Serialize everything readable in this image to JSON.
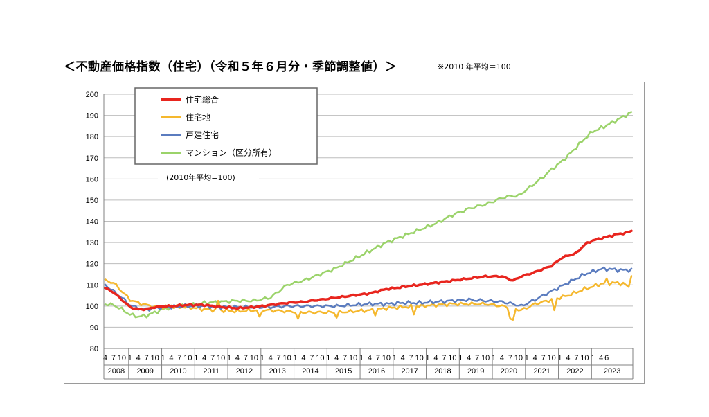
{
  "title": "＜不動産価格指数（住宅）（令和５年６月分・季節調整値）＞",
  "note": "※2010 年平均＝100",
  "chart_data": {
    "type": "line",
    "annotation": "(2010年平均=100)",
    "ylim": [
      80,
      200
    ],
    "yticks": [
      80,
      90,
      100,
      110,
      120,
      130,
      140,
      150,
      160,
      170,
      180,
      190,
      200
    ],
    "grid": "horizontal",
    "legend_position": "top-left",
    "x_start": "2008-04",
    "month_tick_labels": [
      "4",
      "7",
      "10",
      "1",
      "4",
      "7",
      "10",
      "1",
      "4",
      "7",
      "10",
      "1",
      "4",
      "7",
      "10",
      "1",
      "4",
      "7",
      "10",
      "1",
      "4",
      "7",
      "10",
      "1",
      "4",
      "7",
      "10",
      "1",
      "4",
      "7",
      "10",
      "1",
      "4",
      "7",
      "10",
      "1",
      "4",
      "7",
      "10",
      "1",
      "4",
      "7",
      "10",
      "1",
      "4",
      "7",
      "10",
      "1",
      "4",
      "7",
      "10",
      "1",
      "4",
      "7",
      "10",
      "1",
      "4",
      "7",
      "10",
      "1",
      "4",
      "6"
    ],
    "year_labels": [
      "2008",
      "2009",
      "2010",
      "2011",
      "2012",
      "2013",
      "2014",
      "2015",
      "2016",
      "2017",
      "2018",
      "2019",
      "2020",
      "2021",
      "2022",
      "2023"
    ],
    "series": [
      {
        "name": "住宅総合",
        "color": "#e8251e",
        "width": 3.5,
        "anchors": [
          [
            0,
            108.5
          ],
          [
            3,
            106.5
          ],
          [
            6,
            103
          ],
          [
            9,
            99.5
          ],
          [
            12,
            98.5
          ],
          [
            15,
            98.5
          ],
          [
            18,
            99.5
          ],
          [
            21,
            99.8
          ],
          [
            24,
            100
          ],
          [
            30,
            100.5
          ],
          [
            36,
            100.5
          ],
          [
            42,
            99.5
          ],
          [
            48,
            99
          ],
          [
            54,
            99.5
          ],
          [
            60,
            100.5
          ],
          [
            66,
            101.5
          ],
          [
            72,
            102
          ],
          [
            78,
            103
          ],
          [
            84,
            104
          ],
          [
            90,
            105
          ],
          [
            96,
            106
          ],
          [
            102,
            108
          ],
          [
            108,
            109
          ],
          [
            114,
            110
          ],
          [
            120,
            111
          ],
          [
            126,
            112
          ],
          [
            132,
            113
          ],
          [
            138,
            114
          ],
          [
            144,
            114
          ],
          [
            148,
            112
          ],
          [
            151,
            114
          ],
          [
            156,
            116
          ],
          [
            162,
            119
          ],
          [
            166,
            123
          ],
          [
            171,
            125
          ],
          [
            174,
            129
          ],
          [
            177,
            131
          ],
          [
            180,
            132
          ],
          [
            183,
            133
          ],
          [
            186,
            134
          ],
          [
            189,
            134.5
          ],
          [
            191,
            135.5
          ]
        ]
      },
      {
        "name": "住宅地",
        "color": "#f5b82e",
        "width": 2.5,
        "anchors": [
          [
            0,
            112
          ],
          [
            3,
            111
          ],
          [
            6,
            107
          ],
          [
            9,
            103
          ],
          [
            12,
            101.5
          ],
          [
            15,
            100.5
          ],
          [
            18,
            99.5
          ],
          [
            21,
            99.5
          ],
          [
            24,
            99.5
          ],
          [
            30,
            99.5
          ],
          [
            36,
            98.5
          ],
          [
            42,
            98
          ],
          [
            48,
            97.5
          ],
          [
            54,
            98
          ],
          [
            60,
            98
          ],
          [
            66,
            97.5
          ],
          [
            72,
            97
          ],
          [
            78,
            97
          ],
          [
            84,
            97
          ],
          [
            90,
            97.5
          ],
          [
            96,
            98
          ],
          [
            102,
            99
          ],
          [
            108,
            99.5
          ],
          [
            114,
            100
          ],
          [
            120,
            100.5
          ],
          [
            126,
            101
          ],
          [
            132,
            101
          ],
          [
            138,
            101
          ],
          [
            144,
            100
          ],
          [
            148,
            99
          ],
          [
            151,
            98
          ],
          [
            156,
            101
          ],
          [
            162,
            103
          ],
          [
            168,
            105
          ],
          [
            174,
            108
          ],
          [
            180,
            110.5
          ],
          [
            186,
            111
          ],
          [
            189,
            110
          ],
          [
            191,
            115
          ]
        ],
        "spikes": [
          [
            41,
            102.5
          ],
          [
            56,
            95
          ],
          [
            70,
            94
          ],
          [
            84,
            94.5
          ],
          [
            98,
            95.5
          ],
          [
            112,
            96
          ],
          [
            147,
            94
          ],
          [
            148,
            93.5
          ],
          [
            163,
            98
          ],
          [
            182,
            113
          ],
          [
            190,
            109
          ]
        ]
      },
      {
        "name": "戸建住宅",
        "color": "#5b7cbf",
        "width": 2.5,
        "anchors": [
          [
            0,
            110
          ],
          [
            3,
            107
          ],
          [
            6,
            104
          ],
          [
            9,
            100.5
          ],
          [
            12,
            99
          ],
          [
            15,
            98.5
          ],
          [
            18,
            99
          ],
          [
            21,
            99.5
          ],
          [
            24,
            99.5
          ],
          [
            30,
            100
          ],
          [
            36,
            100
          ],
          [
            42,
            99.5
          ],
          [
            48,
            99.5
          ],
          [
            54,
            99.5
          ],
          [
            60,
            99.5
          ],
          [
            66,
            100
          ],
          [
            72,
            100
          ],
          [
            78,
            100
          ],
          [
            84,
            100
          ],
          [
            90,
            100.5
          ],
          [
            96,
            101
          ],
          [
            102,
            101
          ],
          [
            108,
            101.5
          ],
          [
            114,
            101.5
          ],
          [
            120,
            102
          ],
          [
            126,
            102.5
          ],
          [
            132,
            103
          ],
          [
            138,
            102.5
          ],
          [
            144,
            102
          ],
          [
            148,
            101
          ],
          [
            151,
            100
          ],
          [
            156,
            103
          ],
          [
            162,
            107
          ],
          [
            168,
            111
          ],
          [
            174,
            115
          ],
          [
            180,
            117.5
          ],
          [
            183,
            117.5
          ],
          [
            186,
            117
          ],
          [
            191,
            117
          ]
        ]
      },
      {
        "name": "マンション（区分所有）",
        "color": "#9bd36a",
        "width": 2.5,
        "anchors": [
          [
            0,
            101
          ],
          [
            3,
            100.5
          ],
          [
            6,
            98.5
          ],
          [
            9,
            96
          ],
          [
            12,
            95
          ],
          [
            15,
            95.5
          ],
          [
            18,
            97
          ],
          [
            21,
            98.5
          ],
          [
            24,
            99.5
          ],
          [
            30,
            100
          ],
          [
            36,
            101.5
          ],
          [
            42,
            102
          ],
          [
            48,
            102.5
          ],
          [
            54,
            102.5
          ],
          [
            60,
            104
          ],
          [
            63,
            107
          ],
          [
            66,
            110
          ],
          [
            72,
            112
          ],
          [
            78,
            115
          ],
          [
            84,
            118
          ],
          [
            90,
            122
          ],
          [
            96,
            126
          ],
          [
            102,
            130
          ],
          [
            108,
            133
          ],
          [
            114,
            136
          ],
          [
            120,
            139
          ],
          [
            126,
            143
          ],
          [
            132,
            146
          ],
          [
            138,
            148
          ],
          [
            144,
            151
          ],
          [
            147,
            152
          ],
          [
            150,
            152
          ],
          [
            153,
            155
          ],
          [
            156,
            158
          ],
          [
            159,
            161
          ],
          [
            162,
            164.5
          ],
          [
            165,
            167.5
          ],
          [
            168,
            171
          ],
          [
            171,
            175
          ],
          [
            174,
            179
          ],
          [
            177,
            182.5
          ],
          [
            180,
            184
          ],
          [
            183,
            186
          ],
          [
            186,
            188
          ],
          [
            189,
            190
          ],
          [
            191,
            191.5
          ]
        ]
      }
    ]
  }
}
